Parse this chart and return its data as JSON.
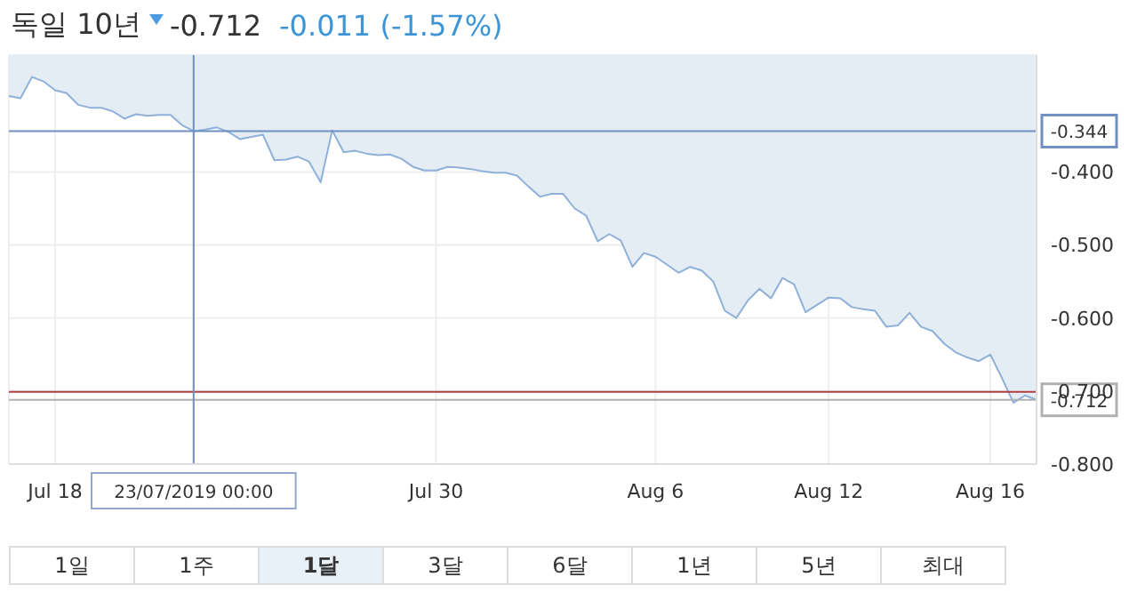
{
  "chart_data": {
    "type": "area",
    "title": "독일 10년",
    "annotations": [
      "-0.712",
      "-0.011 (-1.57%)",
      "1일",
      "1주",
      "1달",
      "3달",
      "6달",
      "1년",
      "5년",
      "최대"
    ],
    "categories": [
      null,
      null,
      null,
      null,
      "Jul 18",
      null,
      null,
      null,
      null,
      null,
      null,
      null,
      null,
      null,
      null,
      null,
      "23/07/2019 00:00",
      null,
      null,
      null,
      null,
      null,
      null,
      null,
      null,
      null,
      null,
      null,
      null,
      null,
      null,
      null,
      null,
      null,
      null,
      null,
      null,
      "Jul 30",
      null,
      null,
      null,
      null,
      null,
      null,
      null,
      null,
      null,
      null,
      null,
      null,
      null,
      null,
      null,
      null,
      null,
      null,
      "Aug 6",
      null,
      null,
      null,
      null,
      null,
      null,
      null,
      null,
      null,
      null,
      null,
      null,
      null,
      null,
      "Aug 12",
      null,
      null,
      null,
      null,
      null,
      null,
      null,
      null,
      null,
      null,
      null,
      null,
      null,
      "Aug 16",
      null,
      null,
      null,
      null
    ],
    "series": [
      {
        "color": "#8fb0d8",
        "values": [
          -0.296,
          -0.299,
          -0.27,
          -0.276,
          -0.288,
          -0.292,
          -0.308,
          -0.312,
          -0.312,
          -0.317,
          -0.327,
          -0.321,
          -0.323,
          -0.322,
          -0.322,
          -0.336,
          -0.344,
          -0.342,
          -0.339,
          -0.345,
          -0.355,
          -0.352,
          -0.349,
          -0.384,
          -0.383,
          -0.379,
          -0.386,
          -0.414,
          -0.343,
          -0.373,
          -0.371,
          -0.375,
          -0.377,
          -0.376,
          -0.382,
          -0.393,
          -0.398,
          -0.398,
          -0.393,
          -0.394,
          -0.396,
          -0.399,
          -0.401,
          -0.401,
          -0.405,
          -0.42,
          -0.434,
          -0.43,
          -0.43,
          -0.45,
          -0.46,
          -0.495,
          -0.485,
          -0.494,
          -0.53,
          -0.511,
          -0.516,
          -0.527,
          -0.538,
          -0.53,
          -0.535,
          -0.55,
          -0.59,
          -0.6,
          -0.576,
          -0.56,
          -0.573,
          -0.545,
          -0.554,
          -0.592,
          -0.582,
          -0.572,
          -0.573,
          -0.585,
          -0.588,
          -0.59,
          -0.612,
          -0.61,
          -0.593,
          -0.612,
          -0.618,
          -0.635,
          -0.647,
          -0.654,
          -0.659,
          -0.65,
          -0.682,
          -0.716,
          -0.706,
          -0.712
        ]
      }
    ],
    "ylim": [
      -0.8,
      -0.24
    ],
    "yticks": [
      {
        "value": -0.4,
        "label": "-0.400"
      },
      {
        "value": -0.5,
        "label": "-0.500"
      },
      {
        "value": -0.6,
        "label": "-0.600"
      },
      {
        "value": -0.7,
        "label": "-0.700"
      },
      {
        "value": -0.8,
        "label": "-0.800"
      }
    ],
    "grid": true,
    "ref_lines": [
      {
        "axis": "y",
        "value": -0.344,
        "label": "-0.344",
        "color": "#6f8fc0"
      },
      {
        "axis": "y",
        "value": -0.701,
        "color": "#b04040"
      },
      {
        "axis": "y",
        "value": -0.712,
        "label": "-0.712",
        "color": "#b0b0b0"
      },
      {
        "axis": "x",
        "value": "23/07/2019 00:00",
        "color": "#6f8fc0"
      }
    ]
  }
}
